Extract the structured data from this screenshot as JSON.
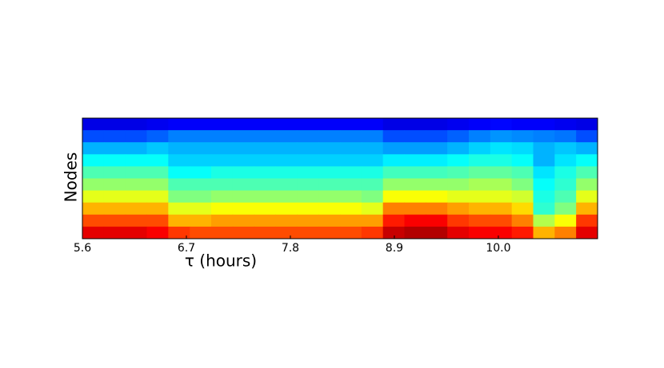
{
  "chart_data": {
    "type": "heatmap",
    "colormap": "jet",
    "x_label": "τ (hours)",
    "y_label": "Nodes",
    "xlim": [
      5.6,
      11.05
    ],
    "xticks": [
      5.6,
      6.7,
      7.8,
      8.9,
      {
        "value": 10,
        "label": "10.0"
      }
    ],
    "zlim": [
      0,
      1
    ],
    "z": [
      [
        0.1,
        0.1,
        0.1,
        0.11,
        0.12,
        0.12,
        0.12,
        0.12,
        0.12,
        0.12,
        0.12,
        0.12,
        0.12,
        0.12,
        0.1,
        0.1,
        0.1,
        0.11,
        0.12,
        0.13,
        0.12,
        0.12,
        0.11,
        0.1
      ],
      [
        0.2,
        0.2,
        0.2,
        0.22,
        0.25,
        0.25,
        0.25,
        0.25,
        0.25,
        0.25,
        0.25,
        0.25,
        0.25,
        0.25,
        0.2,
        0.2,
        0.2,
        0.22,
        0.25,
        0.27,
        0.26,
        0.25,
        0.24,
        0.2
      ],
      [
        0.3,
        0.3,
        0.3,
        0.32,
        0.3,
        0.3,
        0.3,
        0.3,
        0.3,
        0.3,
        0.3,
        0.3,
        0.3,
        0.3,
        0.28,
        0.28,
        0.28,
        0.3,
        0.33,
        0.35,
        0.34,
        0.3,
        0.32,
        0.3
      ],
      [
        0.38,
        0.38,
        0.38,
        0.38,
        0.33,
        0.33,
        0.33,
        0.33,
        0.33,
        0.33,
        0.33,
        0.33,
        0.33,
        0.33,
        0.36,
        0.36,
        0.36,
        0.38,
        0.4,
        0.4,
        0.38,
        0.3,
        0.35,
        0.38
      ],
      [
        0.45,
        0.45,
        0.45,
        0.45,
        0.38,
        0.38,
        0.4,
        0.4,
        0.4,
        0.4,
        0.4,
        0.4,
        0.4,
        0.4,
        0.44,
        0.44,
        0.44,
        0.45,
        0.47,
        0.47,
        0.45,
        0.35,
        0.4,
        0.45
      ],
      [
        0.52,
        0.52,
        0.52,
        0.52,
        0.45,
        0.45,
        0.45,
        0.45,
        0.45,
        0.45,
        0.45,
        0.45,
        0.45,
        0.45,
        0.52,
        0.52,
        0.52,
        0.52,
        0.54,
        0.54,
        0.5,
        0.38,
        0.42,
        0.52
      ],
      [
        0.6,
        0.6,
        0.6,
        0.6,
        0.5,
        0.5,
        0.52,
        0.52,
        0.52,
        0.52,
        0.52,
        0.52,
        0.52,
        0.5,
        0.62,
        0.62,
        0.62,
        0.6,
        0.6,
        0.6,
        0.58,
        0.4,
        0.45,
        0.6
      ],
      [
        0.7,
        0.7,
        0.7,
        0.7,
        0.6,
        0.6,
        0.62,
        0.62,
        0.62,
        0.62,
        0.62,
        0.62,
        0.62,
        0.6,
        0.75,
        0.75,
        0.75,
        0.72,
        0.7,
        0.7,
        0.66,
        0.42,
        0.5,
        0.7
      ],
      [
        0.8,
        0.8,
        0.8,
        0.8,
        0.7,
        0.7,
        0.72,
        0.72,
        0.72,
        0.72,
        0.72,
        0.72,
        0.72,
        0.72,
        0.85,
        0.88,
        0.88,
        0.82,
        0.8,
        0.8,
        0.75,
        0.55,
        0.62,
        0.82
      ],
      [
        0.9,
        0.9,
        0.9,
        0.88,
        0.82,
        0.8,
        0.8,
        0.8,
        0.8,
        0.8,
        0.8,
        0.8,
        0.8,
        0.82,
        0.93,
        0.95,
        0.95,
        0.9,
        0.88,
        0.88,
        0.85,
        0.7,
        0.75,
        0.9
      ]
    ]
  }
}
